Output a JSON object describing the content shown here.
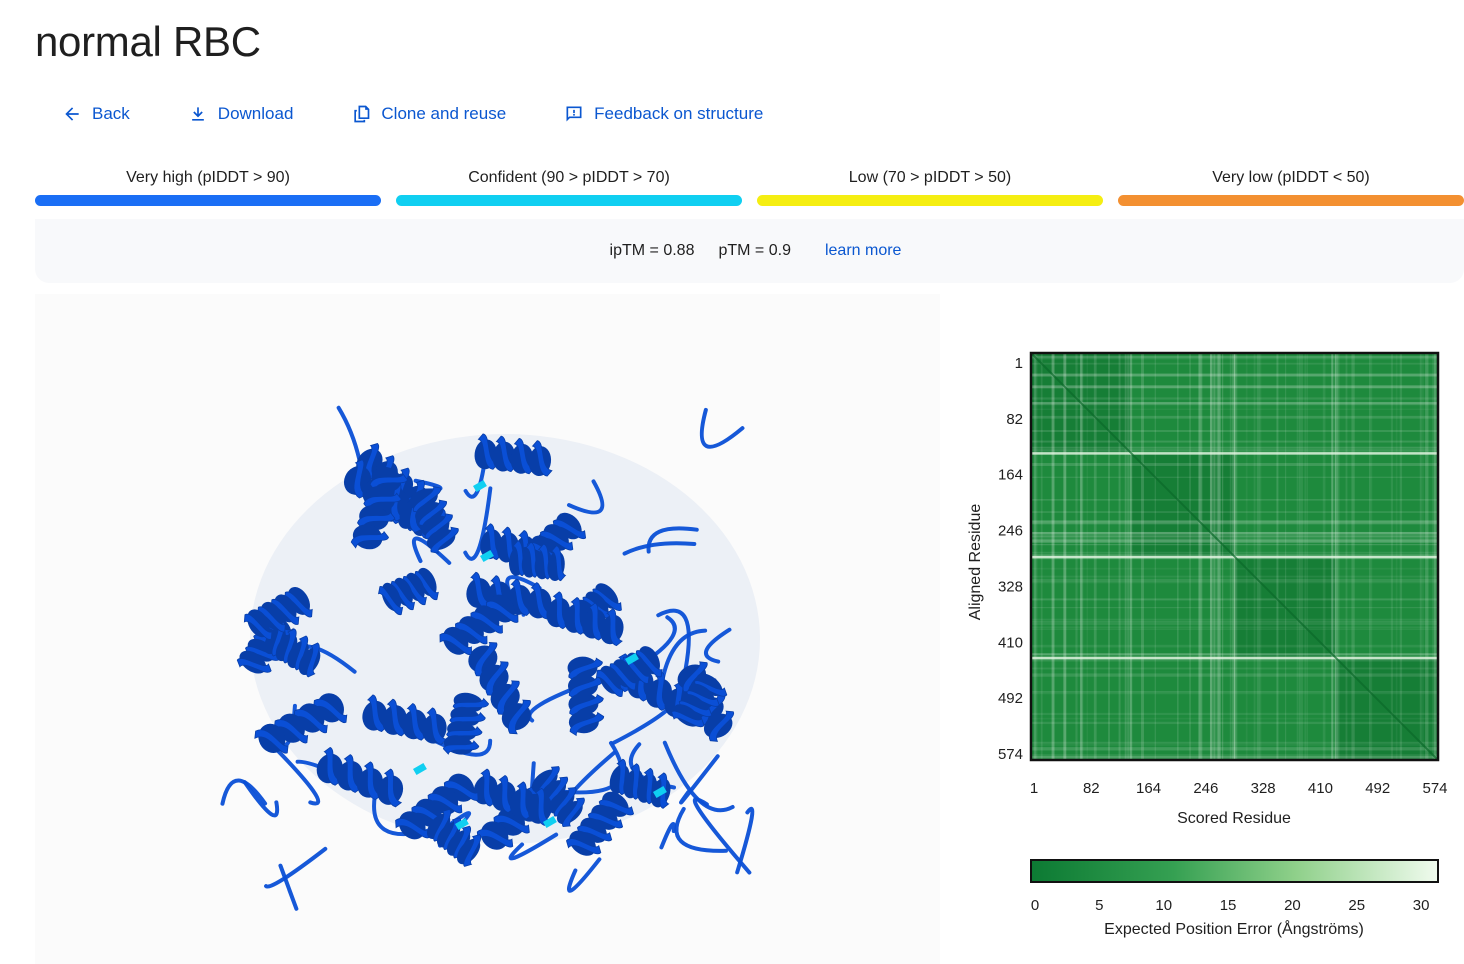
{
  "page": {
    "title": "normal RBC"
  },
  "toolbar": {
    "back": "Back",
    "download": "Download",
    "clone": "Clone and reuse",
    "feedback": "Feedback on structure"
  },
  "plddt_legend": [
    {
      "label": "Very high (pIDDT > 90)",
      "color": "#1a6ef5"
    },
    {
      "label": "Confident (90 > pIDDT > 70)",
      "color": "#10cff1"
    },
    {
      "label": "Low (70 > pIDDT > 50)",
      "color": "#f5ee12"
    },
    {
      "label": "Very low (pIDDT < 50)",
      "color": "#f39031"
    }
  ],
  "metrics": {
    "iptm": "ipTM = 0.88",
    "ptm": "pTM = 0.9",
    "learn_more": "learn more"
  },
  "colors": {
    "structure": "#0a4fd6",
    "structure_dark": "#083ea8",
    "pae_low": "#0c7a33",
    "pae_high": "#f0fbee"
  },
  "chart_data": {
    "type": "heatmap",
    "xlabel": "Scored Residue",
    "ylabel": "Aligned Residue",
    "x_ticks": [
      "1",
      "82",
      "164",
      "246",
      "328",
      "410",
      "492",
      "574"
    ],
    "y_ticks": [
      "1",
      "82",
      "164",
      "246",
      "328",
      "410",
      "492",
      "574"
    ],
    "residue_range": [
      1,
      574
    ],
    "chain_boundaries": [
      142,
      288,
      430
    ],
    "colorbar": {
      "label": "Expected Position Error (Ångströms)",
      "ticks": [
        "0",
        "5",
        "10",
        "15",
        "20",
        "25",
        "30"
      ],
      "range": [
        0,
        31
      ]
    }
  }
}
